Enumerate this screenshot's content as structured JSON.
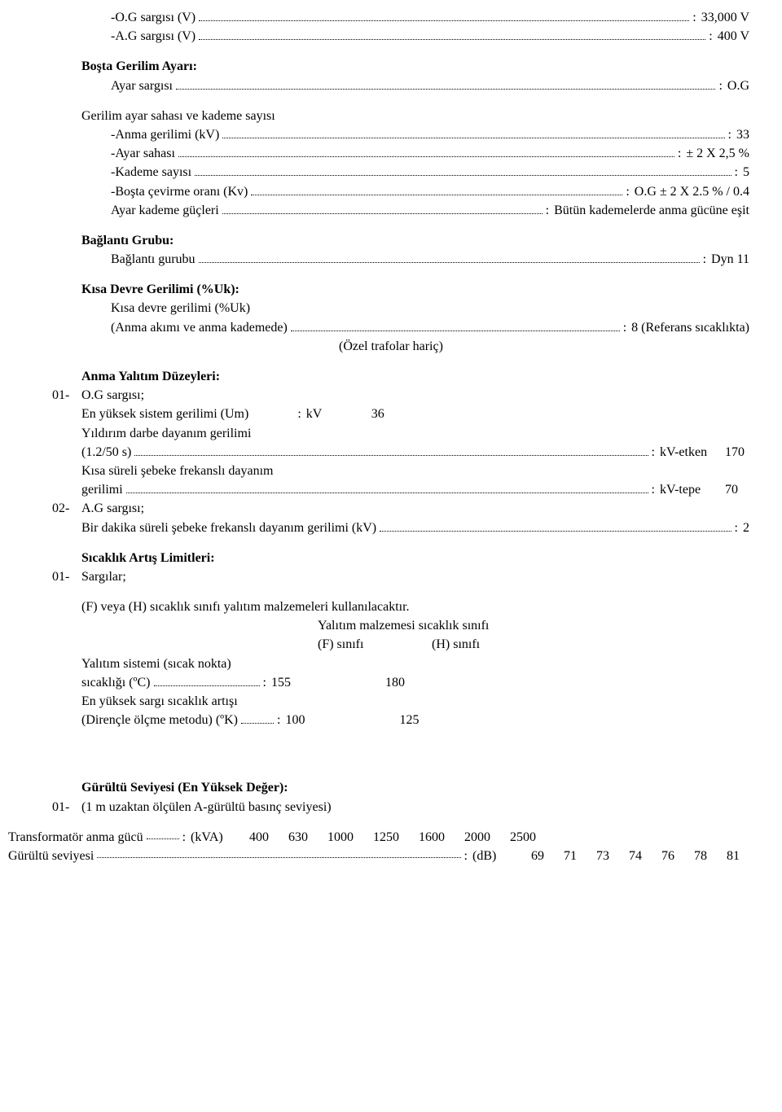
{
  "s1": {
    "og_label": "-O.G sargısı (V)",
    "og_val": "33,000 V",
    "ag_label": "-A.G sargısı (V)",
    "ag_val": "400 V"
  },
  "bosta": {
    "title": "Boşta Gerilim Ayarı:",
    "ayar_sargisi_label": "Ayar sargısı",
    "ayar_sargisi_val": "O.G",
    "subtitle": "Gerilim ayar sahası ve kademe sayısı",
    "anma_label": "-Anma gerilimi (kV)",
    "anma_val": "33",
    "ayar_sahasi_label": "-Ayar sahası",
    "ayar_sahasi_val": "± 2 X 2,5 %",
    "kademe_label": "-Kademe sayısı",
    "kademe_val": "5",
    "bosta_cevirme_label": "-Boşta çevirme oranı (Kv)",
    "bosta_cevirme_val": "O.G ± 2 X 2.5 % / 0.4",
    "ayar_kademe_label": "Ayar kademe güçleri",
    "ayar_kademe_val": "Bütün kademelerde anma gücüne eşit"
  },
  "baglanti": {
    "title": "Bağlantı Grubu:",
    "gurubu_label": "Bağlantı gurubu",
    "gurubu_val": "Dyn 11"
  },
  "kisa": {
    "title": "Kısa Devre Gerilimi (%Uk):",
    "line1": "Kısa devre gerilimi (%Uk)",
    "line2_label": "(Anma akımı ve anma kademede)",
    "line2_val": "8 (Referans sıcaklıkta)",
    "line3": "(Özel trafolar hariç)"
  },
  "anma_yalitim": {
    "title": "Anma Yalıtım Düzeyleri:",
    "n01": "01-",
    "og_title": "O.G sargısı;",
    "um_label": "En yüksek sistem gerilimi (Um)",
    "um_unit": "kV",
    "um_val": "36",
    "yil_line1": "Yıldırım darbe dayanım gerilimi",
    "yil_label": "(1.2/50 s)",
    "yil_unit": "kV-etken",
    "yil_val": "170",
    "kisa_line1": "Kısa süreli şebeke frekanslı dayanım",
    "kisa_label": "gerilimi",
    "kisa_unit": "kV-tepe",
    "kisa_val": "70",
    "n02": "02-",
    "ag_title": "A.G sargısı;",
    "ag_label": "Bir dakika süreli şebeke frekanslı dayanım gerilimi (kV)",
    "ag_val": "2"
  },
  "sicaklik": {
    "title": "Sıcaklık Artış Limitleri:",
    "n01": "01-",
    "sargilar": "Sargılar;",
    "para": "(F) veya (H) sıcaklık sınıfı yalıtım malzemeleri kullanılacaktır.",
    "col_title": "Yalıtım malzemesi sıcaklık sınıfı",
    "col_f": "(F) sınıfı",
    "col_h": "(H) sınıfı",
    "row1_line1": "Yalıtım sistemi (sıcak nokta)",
    "row1_label": "sıcaklığı (ºC)",
    "row1_f": "155",
    "row1_h": "180",
    "row2_line1": "En yüksek sargı sıcaklık artışı",
    "row2_label": "(Dirençle ölçme metodu) (ºK)",
    "row2_f": "100",
    "row2_h": "125"
  },
  "gurultu": {
    "title": "Gürültü Seviyesi (En Yüksek Değer):",
    "n01": "01-",
    "sub": "(1 m uzaktan ölçülen A-gürültü basınç seviyesi)",
    "row1_label": "Transformatör anma gücü",
    "row1_unit": "(kVA)",
    "row1_vals": [
      "400",
      "630",
      "1000",
      "1250",
      "1600",
      "2000",
      "2500"
    ],
    "row2_label": "Gürültü seviyesi",
    "row2_unit": "(dB)",
    "row2_vals": [
      "69",
      "71",
      "73",
      "74",
      "76",
      "78",
      "81"
    ]
  }
}
